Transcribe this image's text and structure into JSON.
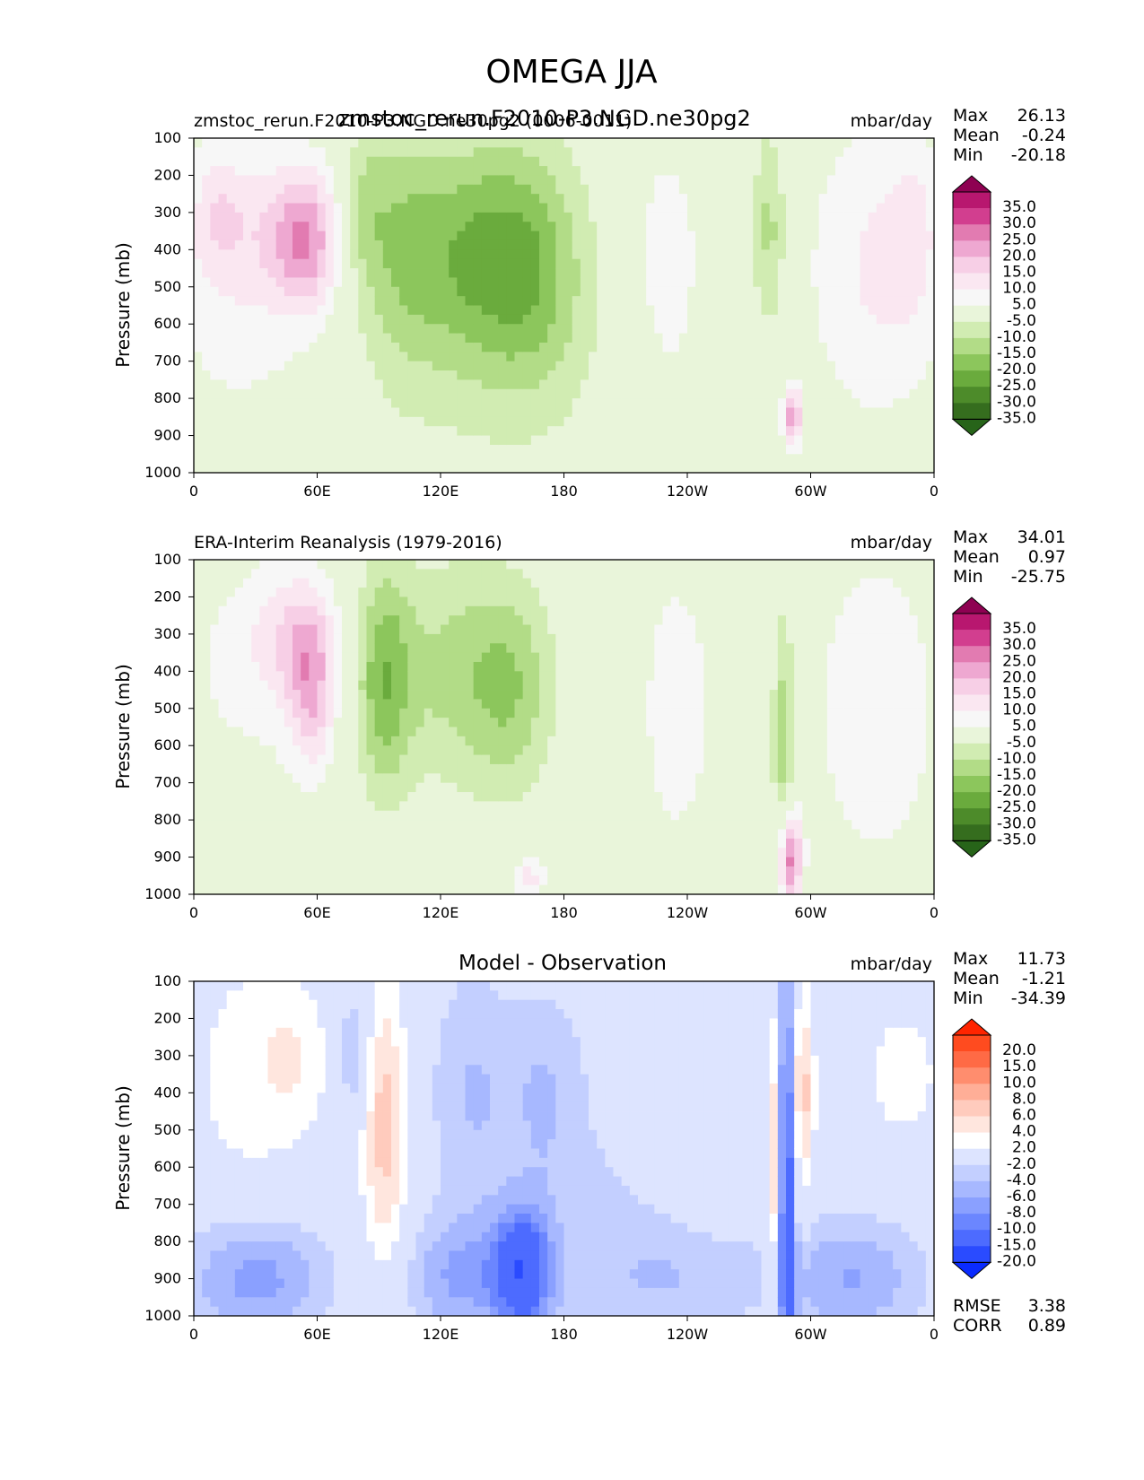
{
  "title": "OMEGA JJA",
  "panels": [
    {
      "left_label": "zmstoc_rerun.F2010-P3.NGD.ne30pg2 (0006-0011)",
      "center_title": "zmstoc_rerun.F2010-P3.NGD.ne30pg2",
      "units": "mbar/day",
      "stats": [
        {
          "label": "Max",
          "value": "26.13"
        },
        {
          "label": "Mean",
          "value": "-0.24"
        },
        {
          "label": "Min",
          "value": "-20.18"
        }
      ]
    },
    {
      "left_label": "ERA-Interim Reanalysis (1979-2016)",
      "center_title": "",
      "units": "mbar/day",
      "stats": [
        {
          "label": "Max",
          "value": "34.01"
        },
        {
          "label": "Mean",
          "value": "0.97"
        },
        {
          "label": "Min",
          "value": "-25.75"
        }
      ]
    },
    {
      "left_label": "",
      "center_title": "Model - Observation",
      "units": "mbar/day",
      "stats": [
        {
          "label": "Max",
          "value": "11.73"
        },
        {
          "label": "Mean",
          "value": "-1.21"
        },
        {
          "label": "Min",
          "value": "-34.39"
        }
      ],
      "metrics": [
        {
          "label": "RMSE",
          "value": "3.38"
        },
        {
          "label": "CORR",
          "value": "0.89"
        }
      ]
    }
  ],
  "colorbars": {
    "omega": {
      "labels": [
        "35.0",
        "30.0",
        "25.0",
        "20.0",
        "15.0",
        "10.0",
        "5.0",
        "-5.0",
        "-10.0",
        "-15.0",
        "-20.0",
        "-25.0",
        "-30.0",
        "-35.0"
      ],
      "colors": [
        "#8e0152",
        "#b8176f",
        "#d23e8f",
        "#e27bb1",
        "#eea8d1",
        "#f7cfe6",
        "#fae7f1",
        "#f7f7f7",
        "#e9f5da",
        "#d1ecb2",
        "#b2dc87",
        "#8cc65c",
        "#6aab3d",
        "#4d8b2a",
        "#356d1e",
        "#276419"
      ]
    },
    "diff": {
      "labels": [
        "20.0",
        "15.0",
        "10.0",
        "8.0",
        "6.0",
        "4.0",
        "2.0",
        "-2.0",
        "-4.0",
        "-6.0",
        "-8.0",
        "-10.0",
        "-15.0",
        "-20.0"
      ],
      "colors": [
        "#ff2400",
        "#ff4b1f",
        "#ff6a45",
        "#ff8d6e",
        "#ffae97",
        "#ffcbbd",
        "#ffe6de",
        "#ffffff",
        "#dde4ff",
        "#c3cfff",
        "#a7b8ff",
        "#8aa0ff",
        "#6b86ff",
        "#4d6bff",
        "#2a4bff",
        "#0a2bff"
      ]
    }
  },
  "chart_data": [
    {
      "type": "heatmap",
      "title": "zmstoc_rerun.F2010-P3.NGD.ne30pg2",
      "ylabel": "Pressure (mb)",
      "xticks": [
        "0",
        "60E",
        "120E",
        "180",
        "120W",
        "60W",
        "0"
      ],
      "yticks": [
        "100",
        "200",
        "300",
        "400",
        "500",
        "600",
        "700",
        "800",
        "900",
        "1000"
      ],
      "xlim": [
        0,
        360
      ],
      "ylim": [
        1000,
        100
      ],
      "blobs": [
        {
          "lon": 32,
          "p": 330,
          "wlon": 28,
          "wp": 140,
          "v": 6
        },
        {
          "lon": 55,
          "p": 380,
          "wlon": 12,
          "wp": 130,
          "v": 19
        },
        {
          "lon": 25,
          "p": 500,
          "wlon": 30,
          "wp": 300,
          "v": 8
        },
        {
          "lon": 12,
          "p": 300,
          "wlon": 8,
          "wp": 120,
          "v": 6
        },
        {
          "lon": 82,
          "p": 300,
          "wlon": 8,
          "wp": 150,
          "v": -10
        },
        {
          "lon": 100,
          "p": 350,
          "wlon": 12,
          "wp": 260,
          "v": -8
        },
        {
          "lon": 135,
          "p": 400,
          "wlon": 25,
          "wp": 210,
          "v": -15
        },
        {
          "lon": 165,
          "p": 450,
          "wlon": 18,
          "wp": 240,
          "v": -10
        },
        {
          "lon": 140,
          "p": 600,
          "wlon": 50,
          "wp": 300,
          "v": -6
        },
        {
          "lon": 230,
          "p": 450,
          "wlon": 15,
          "wp": 300,
          "v": 8
        },
        {
          "lon": 280,
          "p": 350,
          "wlon": 6,
          "wp": 200,
          "v": -12
        },
        {
          "lon": 291,
          "p": 850,
          "wlon": 3,
          "wp": 60,
          "v": 24
        },
        {
          "lon": 333,
          "p": 450,
          "wlon": 25,
          "wp": 300,
          "v": 11
        },
        {
          "lon": 350,
          "p": 350,
          "wlon": 8,
          "wp": 150,
          "v": 6
        }
      ]
    },
    {
      "type": "heatmap",
      "title": "ERA-Interim Reanalysis (1979-2016)",
      "ylabel": "Pressure (mb)",
      "xticks": [
        "0",
        "60E",
        "120E",
        "180",
        "120W",
        "60W",
        "0"
      ],
      "yticks": [
        "100",
        "200",
        "300",
        "400",
        "500",
        "600",
        "700",
        "800",
        "900",
        "1000"
      ],
      "xlim": [
        0,
        360
      ],
      "ylim": [
        1000,
        100
      ],
      "blobs": [
        {
          "lon": 30,
          "p": 400,
          "wlon": 35,
          "wp": 250,
          "v": 6
        },
        {
          "lon": 57,
          "p": 450,
          "wlon": 8,
          "wp": 150,
          "v": 16
        },
        {
          "lon": 48,
          "p": 300,
          "wlon": 15,
          "wp": 120,
          "v": 10
        },
        {
          "lon": 92,
          "p": 420,
          "wlon": 10,
          "wp": 220,
          "v": -18
        },
        {
          "lon": 125,
          "p": 400,
          "wlon": 22,
          "wp": 220,
          "v": -11
        },
        {
          "lon": 155,
          "p": 450,
          "wlon": 15,
          "wp": 200,
          "v": -12
        },
        {
          "lon": 235,
          "p": 500,
          "wlon": 14,
          "wp": 300,
          "v": 8
        },
        {
          "lon": 287,
          "p": 600,
          "wlon": 4,
          "wp": 250,
          "v": -15
        },
        {
          "lon": 290,
          "p": 900,
          "wlon": 4,
          "wp": 100,
          "v": 30
        },
        {
          "lon": 332,
          "p": 500,
          "wlon": 22,
          "wp": 300,
          "v": 10
        },
        {
          "lon": 163,
          "p": 960,
          "wlon": 6,
          "wp": 50,
          "v": 12
        }
      ]
    },
    {
      "type": "heatmap",
      "title": "Model - Observation",
      "ylabel": "Pressure (mb)",
      "xticks": [
        "0",
        "60E",
        "120E",
        "180",
        "120W",
        "60W",
        "0"
      ],
      "yticks": [
        "100",
        "200",
        "300",
        "400",
        "500",
        "600",
        "700",
        "800",
        "900",
        "1000"
      ],
      "xlim": [
        0,
        360
      ],
      "ylim": [
        1000,
        100
      ],
      "blobs": [
        {
          "lon": 25,
          "p": 350,
          "wlon": 20,
          "wp": 250,
          "v": 3
        },
        {
          "lon": 50,
          "p": 300,
          "wlon": 12,
          "wp": 150,
          "v": 3
        },
        {
          "lon": 30,
          "p": 900,
          "wlon": 25,
          "wp": 120,
          "v": -7
        },
        {
          "lon": 78,
          "p": 300,
          "wlon": 5,
          "wp": 120,
          "v": -5
        },
        {
          "lon": 93,
          "p": 500,
          "wlon": 8,
          "wp": 280,
          "v": 7
        },
        {
          "lon": 135,
          "p": 400,
          "wlon": 15,
          "wp": 250,
          "v": -4
        },
        {
          "lon": 160,
          "p": 880,
          "wlon": 10,
          "wp": 120,
          "v": -12
        },
        {
          "lon": 130,
          "p": 900,
          "wlon": 20,
          "wp": 120,
          "v": -6
        },
        {
          "lon": 170,
          "p": 400,
          "wlon": 12,
          "wp": 200,
          "v": -3
        },
        {
          "lon": 200,
          "p": 700,
          "wlon": 30,
          "wp": 400,
          "v": -2.5
        },
        {
          "lon": 230,
          "p": 400,
          "wlon": 20,
          "wp": 150,
          "v": 3
        },
        {
          "lon": 288,
          "p": 600,
          "wlon": 3,
          "wp": 400,
          "v": -15
        },
        {
          "lon": 283,
          "p": 600,
          "wlon": 3,
          "wp": 300,
          "v": 8
        },
        {
          "lon": 296,
          "p": 400,
          "wlon": 4,
          "wp": 200,
          "v": 7
        },
        {
          "lon": 320,
          "p": 900,
          "wlon": 25,
          "wp": 120,
          "v": -6
        },
        {
          "lon": 345,
          "p": 350,
          "wlon": 15,
          "wp": 150,
          "v": 3
        },
        {
          "lon": 240,
          "p": 900,
          "wlon": 30,
          "wp": 100,
          "v": -3
        }
      ]
    }
  ]
}
